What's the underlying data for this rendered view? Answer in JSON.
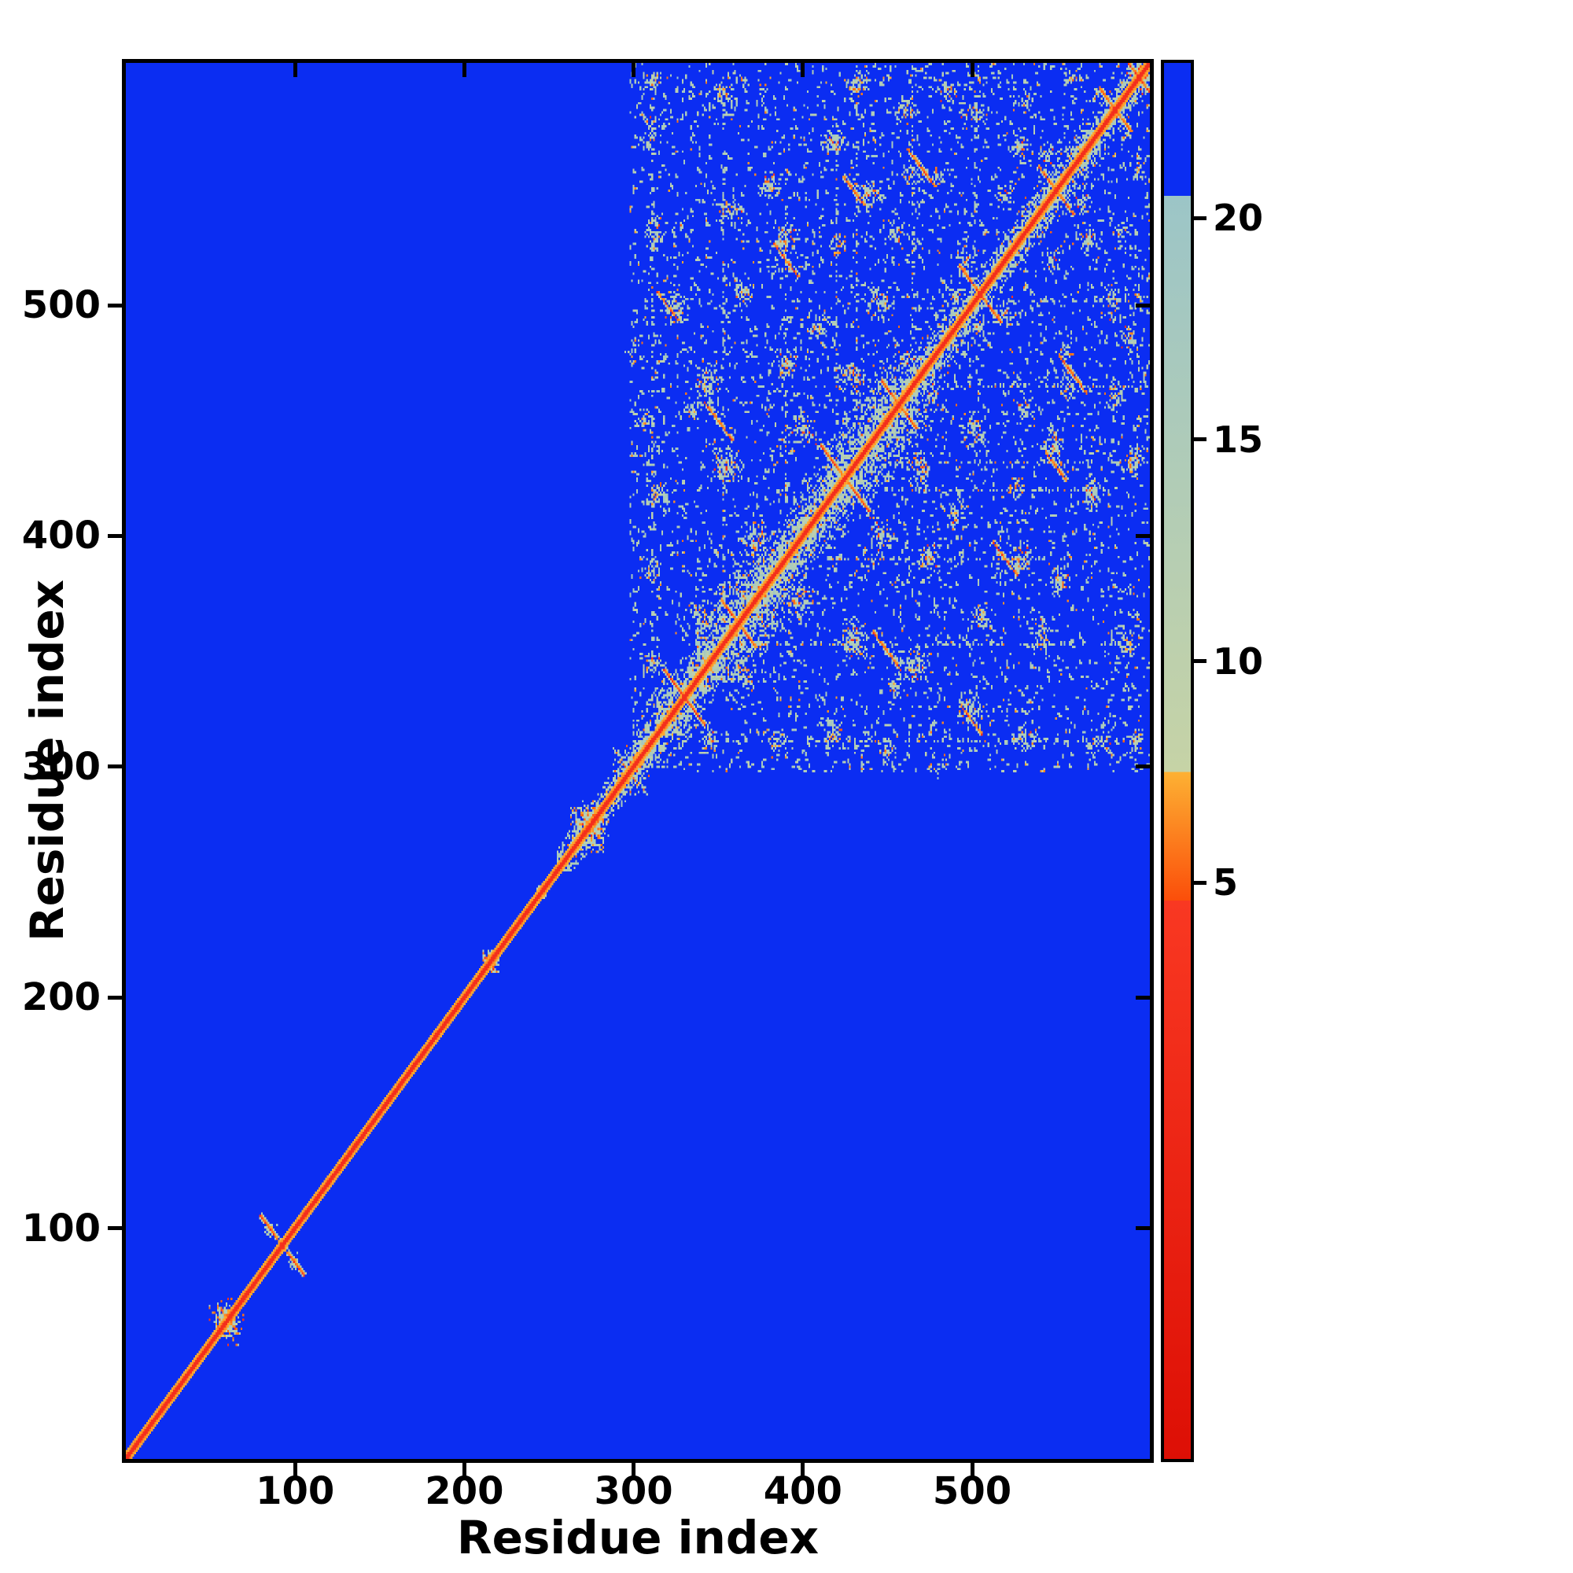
{
  "chart_data": {
    "type": "heatmap",
    "title": "",
    "xlabel": "Residue index",
    "ylabel": "Residue index",
    "x_range": [
      0,
      605
    ],
    "y_range": [
      0,
      605
    ],
    "n_residues": 606,
    "x_ticks": [
      100,
      200,
      300,
      400,
      500
    ],
    "y_ticks": [
      100,
      200,
      300,
      400,
      500
    ],
    "grid": false,
    "background_value": 30,
    "seed": 7,
    "colorbar": {
      "ticks": [
        5,
        10,
        15,
        20
      ],
      "vmin": -8,
      "vmax": 23.5,
      "position": "right"
    },
    "thresholds": {
      "blue_green": 20.5,
      "green_orange": 7.5,
      "orange_red": 4.6
    },
    "colors": {
      "blue": "#0b2df2",
      "green_low": "#c6d3a6",
      "green_high": "#9cc5c7",
      "orange_low": "#fb4e0a",
      "orange_high": "#fdb133",
      "red_low": "#dd0f05",
      "red_high": "#f93822",
      "frame": "#000000",
      "text": "#000000",
      "figure_background": "#ffffff"
    },
    "diagonal": {
      "core_value": 1.5,
      "fringe_values": [
        2.6,
        6.0,
        7.1
      ]
    },
    "diag_bands": [
      [
        255,
        300,
        10
      ],
      [
        300,
        338,
        20
      ],
      [
        338,
        378,
        28
      ],
      [
        378,
        415,
        20
      ],
      [
        415,
        455,
        28
      ],
      [
        455,
        492,
        16
      ],
      [
        492,
        530,
        13
      ],
      [
        530,
        566,
        16
      ],
      [
        566,
        603,
        13
      ]
    ],
    "clusters": [
      [
        58,
        62,
        9,
        7,
        0.8
      ],
      [
        85,
        99,
        4,
        3,
        0.6
      ],
      [
        214,
        217,
        4,
        4,
        0.85
      ],
      [
        245,
        248,
        3,
        3,
        0.9
      ],
      [
        273,
        277,
        11,
        8,
        0.85
      ],
      [
        295,
        303,
        7,
        7,
        0.7
      ],
      [
        311,
        597,
        6,
        5,
        0.6
      ],
      [
        353,
        592,
        7,
        5,
        0.6
      ],
      [
        375,
        589,
        4,
        4,
        0.5
      ],
      [
        432,
        597,
        8,
        5,
        0.65
      ],
      [
        460,
        585,
        7,
        6,
        0.6
      ],
      [
        505,
        599,
        4,
        4,
        0.5
      ],
      [
        530,
        589,
        6,
        5,
        0.55
      ],
      [
        560,
        599,
        5,
        4,
        0.5
      ],
      [
        597,
        601,
        5,
        4,
        0.7
      ],
      [
        311,
        576,
        5,
        7,
        0.6
      ],
      [
        418,
        572,
        8,
        6,
        0.65
      ],
      [
        502,
        583,
        8,
        5,
        0.6
      ],
      [
        487,
        592,
        5,
        5,
        0.55
      ],
      [
        381,
        552,
        7,
        6,
        0.6
      ],
      [
        439,
        549,
        8,
        6,
        0.65
      ],
      [
        465,
        557,
        6,
        5,
        0.6
      ],
      [
        480,
        556,
        6,
        5,
        0.55
      ],
      [
        545,
        566,
        6,
        5,
        0.6
      ],
      [
        311,
        532,
        6,
        8,
        0.6
      ],
      [
        358,
        541,
        7,
        5,
        0.6
      ],
      [
        390,
        529,
        8,
        7,
        0.65
      ],
      [
        420,
        526,
        6,
        5,
        0.55
      ],
      [
        455,
        531,
        7,
        6,
        0.6
      ],
      [
        497,
        519,
        7,
        6,
        0.6
      ],
      [
        520,
        548,
        6,
        6,
        0.6
      ],
      [
        570,
        529,
        8,
        6,
        0.6
      ],
      [
        325,
        499,
        7,
        8,
        0.65
      ],
      [
        365,
        506,
        6,
        6,
        0.6
      ],
      [
        410,
        491,
        6,
        5,
        0.6
      ],
      [
        446,
        502,
        9,
        6,
        0.65
      ],
      [
        490,
        506,
        5,
        5,
        0.55
      ],
      [
        300,
        481,
        5,
        5,
        0.5
      ],
      [
        344,
        468,
        8,
        7,
        0.65
      ],
      [
        390,
        475,
        8,
        6,
        0.6
      ],
      [
        428,
        470,
        9,
        7,
        0.65
      ],
      [
        460,
        476,
        6,
        5,
        0.6
      ],
      [
        307,
        450,
        6,
        6,
        0.6
      ],
      [
        335,
        455,
        6,
        5,
        0.6
      ],
      [
        355,
        430,
        9,
        8,
        0.7
      ],
      [
        400,
        445,
        8,
        7,
        0.65
      ],
      [
        315,
        418,
        7,
        6,
        0.6
      ],
      [
        370,
        400,
        8,
        7,
        0.65
      ],
      [
        310,
        385,
        6,
        6,
        0.6
      ],
      [
        340,
        365,
        7,
        6,
        0.6
      ],
      [
        312,
        344,
        6,
        5,
        0.6
      ],
      [
        575,
        592,
        5,
        4,
        0.55
      ]
    ],
    "hairpins": [
      [
        92,
        92,
        13
      ],
      [
        330,
        330,
        12
      ],
      [
        362,
        362,
        10
      ],
      [
        425,
        425,
        14
      ],
      [
        457,
        457,
        10
      ],
      [
        505,
        505,
        12
      ],
      [
        550,
        550,
        10
      ],
      [
        585,
        585,
        9
      ],
      [
        599,
        599,
        6
      ],
      [
        350,
        450,
        8
      ],
      [
        390,
        520,
        7
      ],
      [
        470,
        560,
        8
      ],
      [
        430,
        550,
        6
      ],
      [
        320,
        500,
        6
      ]
    ],
    "streaks": [
      [
        311,
        335,
        600
      ],
      [
        353,
        375,
        598
      ],
      [
        390,
        412,
        560
      ],
      [
        420,
        442,
        580
      ],
      [
        432,
        455,
        604
      ],
      [
        465,
        485,
        595
      ],
      [
        502,
        520,
        600
      ],
      [
        555,
        572,
        604
      ]
    ],
    "noise": {
      "start": 298,
      "count": 2400
    }
  }
}
